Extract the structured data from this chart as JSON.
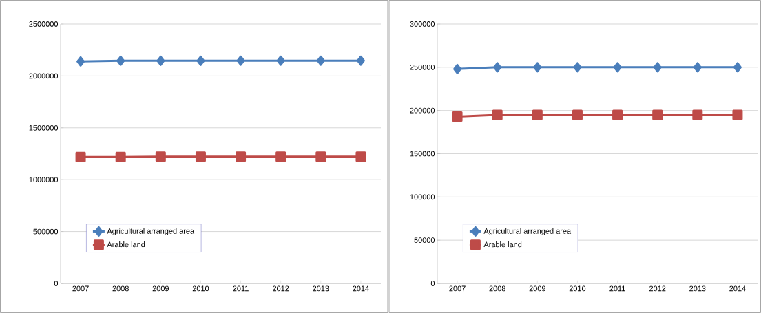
{
  "chart_data": [
    {
      "type": "line",
      "categories": [
        "2007",
        "2008",
        "2009",
        "2010",
        "2011",
        "2012",
        "2013",
        "2014"
      ],
      "ylim": [
        0,
        2500000
      ],
      "yticks": [
        0,
        500000,
        1000000,
        1500000,
        2000000,
        2500000
      ],
      "grid": "y",
      "legend": "bottom left",
      "line_style": "solid",
      "series": [
        {
          "name": "Agricultural arranged area",
          "color": "#4a7ebb",
          "marker": "diamond",
          "values": [
            2140000,
            2146000,
            2146000,
            2146000,
            2147000,
            2147000,
            2147000,
            2147000
          ]
        },
        {
          "name": "Arable land",
          "color": "#be4b48",
          "marker": "square",
          "values": [
            1218000,
            1219000,
            1222000,
            1222000,
            1222000,
            1222000,
            1222000,
            1222000
          ]
        }
      ]
    },
    {
      "type": "line",
      "categories": [
        "2007",
        "2008",
        "2009",
        "2010",
        "2011",
        "2012",
        "2013",
        "2014"
      ],
      "ylim": [
        0,
        300000
      ],
      "yticks": [
        0,
        50000,
        100000,
        150000,
        200000,
        250000,
        300000
      ],
      "grid": "y",
      "legend": "bottom left",
      "line_style": "solid",
      "series": [
        {
          "name": "Agricultural arranged area",
          "color": "#4a7ebb",
          "marker": "diamond",
          "values": [
            248000,
            250000,
            250000,
            250000,
            250000,
            250000,
            250000,
            250000
          ]
        },
        {
          "name": "Arable land",
          "color": "#be4b48",
          "marker": "square",
          "values": [
            193000,
            195000,
            195000,
            195000,
            195000,
            195000,
            195000,
            195000
          ]
        }
      ]
    }
  ]
}
